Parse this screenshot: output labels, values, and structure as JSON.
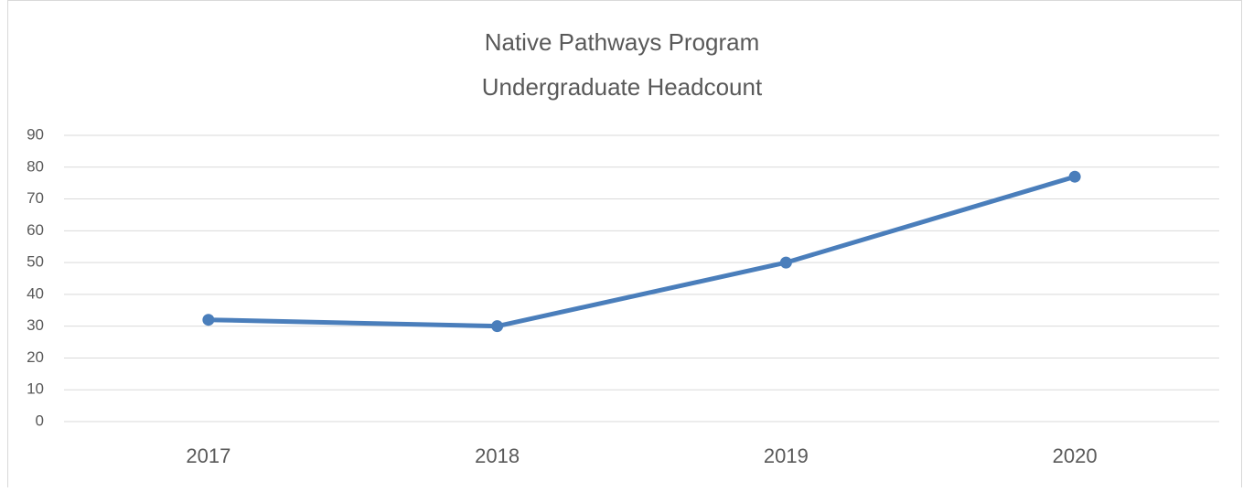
{
  "chart_data": {
    "type": "line",
    "title": [
      "Native Pathways Program",
      "Undergraduate Headcount"
    ],
    "categories": [
      "2017",
      "2018",
      "2019",
      "2020"
    ],
    "values": [
      32,
      30,
      50,
      77
    ],
    "color": "#4a7ebb",
    "ylim": [
      0,
      90
    ],
    "yticks": [
      0,
      10,
      20,
      30,
      40,
      50,
      60,
      70,
      80,
      90
    ],
    "grid": true
  }
}
